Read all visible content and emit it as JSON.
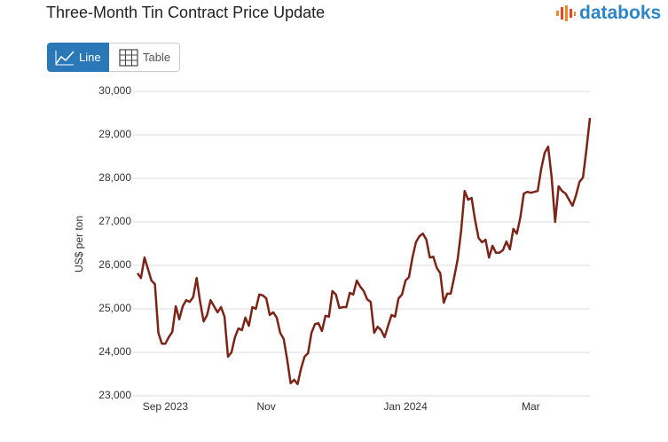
{
  "header": {
    "logo": "databoks"
  },
  "tabs": [
    "Line",
    "Table"
  ],
  "chart_data": {
    "type": "line",
    "title": "Three-Month Tin Contract Price Update",
    "y_label": "US$ per ton",
    "categories": [
      null,
      null,
      null,
      null,
      null,
      null,
      null,
      null,
      "Sep 2023",
      null,
      null,
      null,
      null,
      null,
      null,
      null,
      null,
      null,
      null,
      null,
      null,
      null,
      null,
      null,
      null,
      null,
      null,
      null,
      null,
      null,
      null,
      null,
      null,
      null,
      null,
      null,
      null,
      "Nov",
      null,
      null,
      null,
      null,
      null,
      null,
      null,
      null,
      null,
      null,
      null,
      null,
      null,
      null,
      null,
      null,
      null,
      null,
      null,
      null,
      null,
      null,
      null,
      null,
      null,
      null,
      null,
      null,
      null,
      null,
      null,
      null,
      null,
      null,
      null,
      null,
      null,
      null,
      null,
      "Jan 2024",
      null,
      null,
      null,
      null,
      null,
      null,
      null,
      null,
      null,
      null,
      null,
      null,
      null,
      null,
      null,
      null,
      null,
      null,
      null,
      null,
      null,
      null,
      null,
      null,
      null,
      null,
      null,
      null,
      null,
      null,
      null,
      null,
      null,
      null,
      null,
      "Mar",
      null,
      null,
      null,
      null,
      null,
      null,
      null,
      null,
      null,
      null,
      null,
      null,
      null,
      null,
      null,
      null,
      null
    ],
    "series": [
      {
        "name": "Tin",
        "color": "#7d2418",
        "values": [
          25820,
          25710,
          26180,
          25920,
          25650,
          25570,
          24450,
          24200,
          24200,
          24350,
          24470,
          25060,
          24760,
          25060,
          25200,
          25160,
          25270,
          25710,
          25160,
          24710,
          24860,
          25200,
          25060,
          24920,
          25040,
          24820,
          23900,
          24000,
          24350,
          24550,
          24510,
          24800,
          24610,
          25040,
          25000,
          25330,
          25310,
          25240,
          24860,
          24920,
          24800,
          24450,
          24310,
          23840,
          23290,
          23370,
          23270,
          23630,
          23900,
          23980,
          24450,
          24650,
          24670,
          24490,
          24840,
          24820,
          25410,
          25330,
          25020,
          25040,
          25040,
          25370,
          25330,
          25650,
          25510,
          25410,
          25220,
          25160,
          24450,
          24590,
          24510,
          24350,
          24610,
          24860,
          24820,
          25240,
          25330,
          25650,
          25730,
          26180,
          26530,
          26670,
          26730,
          26590,
          26180,
          26200,
          25940,
          25820,
          25140,
          25350,
          25350,
          25730,
          26140,
          26800,
          27710,
          27510,
          27550,
          27040,
          26630,
          26530,
          26590,
          26180,
          26450,
          26290,
          26290,
          26350,
          26550,
          26370,
          26840,
          26730,
          27100,
          27650,
          27690,
          27670,
          27690,
          27710,
          28220,
          28590,
          28730,
          28020,
          27000,
          27820,
          27710,
          27650,
          27510,
          27370,
          27610,
          27920,
          28020,
          28670,
          29390
        ]
      }
    ],
    "ylim": [
      23000,
      30000
    ],
    "yticks": [
      {
        "value": 23000,
        "label": "23,000"
      },
      {
        "value": 24000,
        "label": "24,000"
      },
      {
        "value": 25000,
        "label": "25,000"
      },
      {
        "value": 26000,
        "label": "26,000"
      },
      {
        "value": 27000,
        "label": "27,000"
      },
      {
        "value": 28000,
        "label": "28,000"
      },
      {
        "value": 29000,
        "label": "29,000"
      },
      {
        "value": 30000,
        "label": "30,000"
      }
    ],
    "grid": true
  }
}
